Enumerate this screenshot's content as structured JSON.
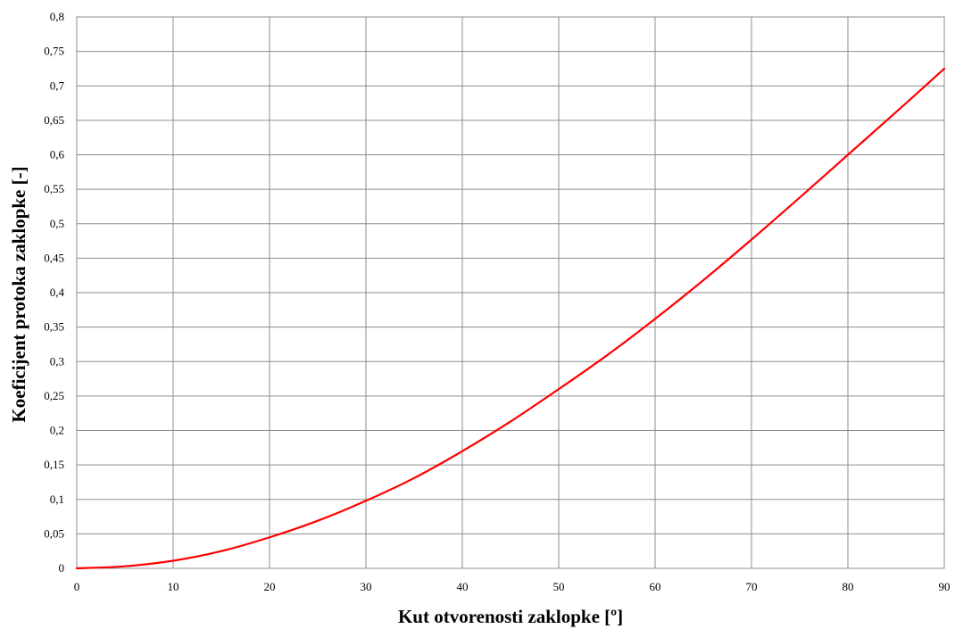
{
  "chart_data": {
    "type": "line",
    "title": "",
    "xlabel": "Kut otvorenosti zaklopke [º]",
    "ylabel": "Koeficijent  protoka zaklopke  [-]",
    "xlim": [
      0,
      90
    ],
    "ylim": [
      0,
      0.8
    ],
    "x_ticks": [
      "0",
      "10",
      "20",
      "30",
      "40",
      "50",
      "60",
      "70",
      "80",
      "90"
    ],
    "y_ticks": [
      "0",
      "0,05",
      "0,1",
      "0,15",
      "0,2",
      "0,25",
      "0,3",
      "0,35",
      "0,4",
      "0,45",
      "0,5",
      "0,55",
      "0,6",
      "0,65",
      "0,7",
      "0,75",
      "0,8"
    ],
    "grid": true,
    "legend": "none",
    "series": [
      {
        "color": "#ff0000",
        "x": [
          0,
          5,
          10,
          15,
          20,
          25,
          30,
          35,
          40,
          45,
          50,
          55,
          60,
          65,
          70,
          75,
          80,
          85,
          90
        ],
        "y": [
          0,
          0.003,
          0.011,
          0.025,
          0.045,
          0.069,
          0.098,
          0.131,
          0.17,
          0.213,
          0.26,
          0.309,
          0.362,
          0.418,
          0.477,
          0.538,
          0.6,
          0.662,
          0.725
        ]
      }
    ]
  }
}
